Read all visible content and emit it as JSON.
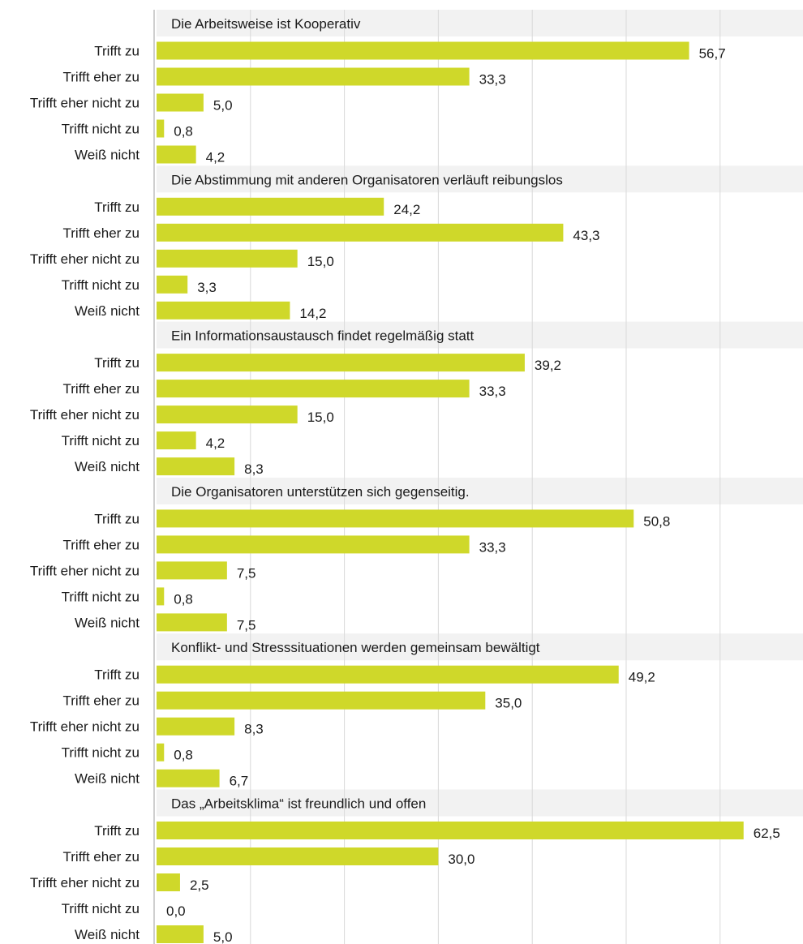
{
  "colors": {
    "bar": "#cfd82a",
    "header_bg": "#f2f2f2",
    "grid": "#d9d9d9",
    "axis": "#bfbfbf",
    "text": "#1a1a1a"
  },
  "chart_data": {
    "type": "bar",
    "orientation": "horizontal",
    "title": "",
    "xlabel": "",
    "ylabel": "",
    "xlim": [
      0,
      70
    ],
    "grid": true,
    "legend": "none",
    "categories": [
      "Trifft zu",
      "Trifft eher zu",
      "Trifft eher nicht zu",
      "Trifft nicht zu",
      "Weiß nicht"
    ],
    "groups": [
      {
        "title": "Die Arbeitsweise ist Kooperativ",
        "values": [
          56.7,
          33.3,
          5.0,
          0.8,
          4.2
        ],
        "labels": [
          "56,7",
          "33,3",
          "5,0",
          "0,8",
          "4,2"
        ]
      },
      {
        "title": "Die Abstimmung mit anderen Organisatoren verläuft reibungslos",
        "values": [
          24.2,
          43.3,
          15.0,
          3.3,
          14.2
        ],
        "labels": [
          "24,2",
          "43,3",
          "15,0",
          "3,3",
          "14,2"
        ]
      },
      {
        "title": "Ein Informationsaustausch findet regelmäßig statt",
        "values": [
          39.2,
          33.3,
          15.0,
          4.2,
          8.3
        ],
        "labels": [
          "39,2",
          "33,3",
          "15,0",
          "4,2",
          "8,3"
        ]
      },
      {
        "title": "Die Organisatoren unterstützen sich gegenseitig.",
        "values": [
          50.8,
          33.3,
          7.5,
          0.8,
          7.5
        ],
        "labels": [
          "50,8",
          "33,3",
          "7,5",
          "0,8",
          "7,5"
        ]
      },
      {
        "title": "Konflikt- und Stresssituationen werden gemeinsam bewältigt",
        "values": [
          49.2,
          35.0,
          8.3,
          0.8,
          6.7
        ],
        "labels": [
          "49,2",
          "35,0",
          "8,3",
          "0,8",
          "6,7"
        ]
      },
      {
        "title": "Das „Arbeitsklima“ ist freundlich und offen",
        "values": [
          62.5,
          30.0,
          2.5,
          0.0,
          5.0
        ],
        "labels": [
          "62,5",
          "30,0",
          "2,5",
          "0,0",
          "5,0"
        ]
      }
    ]
  }
}
